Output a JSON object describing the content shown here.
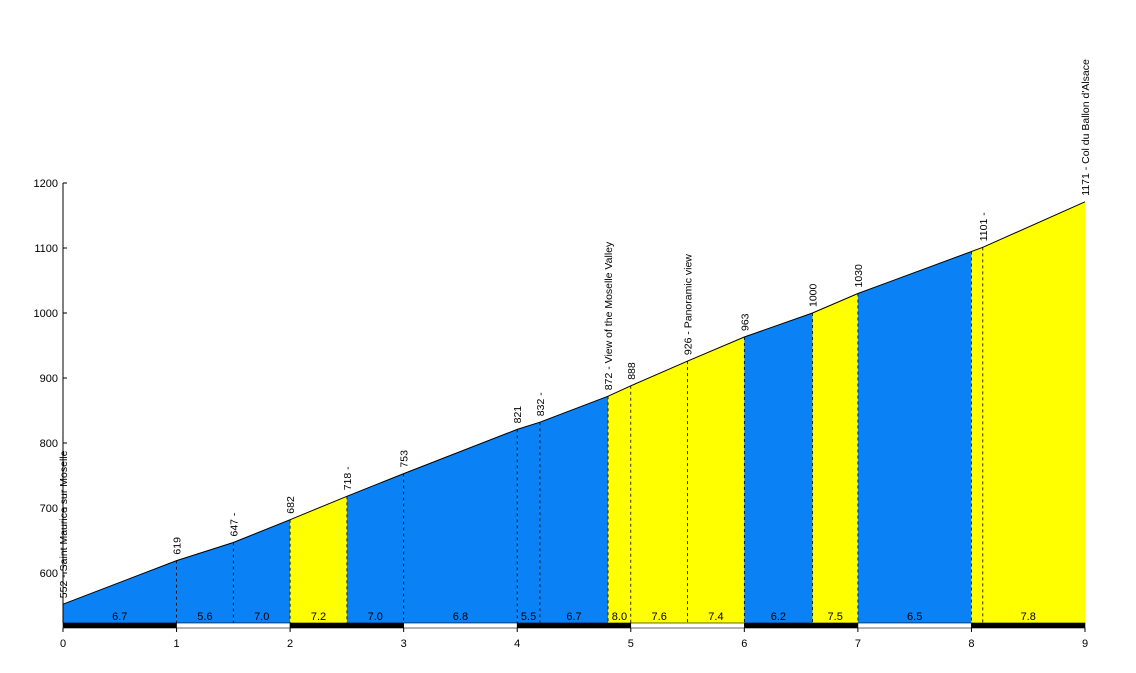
{
  "chart_data": {
    "type": "area",
    "title": "",
    "xlabel": "",
    "ylabel": "",
    "xlim": [
      0,
      9
    ],
    "ylim": [
      520,
      1200
    ],
    "yticks": [
      600,
      700,
      800,
      900,
      1000,
      1100,
      1200
    ],
    "xticks": [
      0,
      1,
      2,
      3,
      4,
      5,
      6,
      7,
      8,
      9
    ],
    "colors": {
      "blue": "#0a82f5",
      "yellow": "#ffff00",
      "line": "#000000"
    },
    "profile": [
      {
        "x": 0,
        "y": 552
      },
      {
        "x": 1,
        "y": 619
      },
      {
        "x": 1.5,
        "y": 647
      },
      {
        "x": 2,
        "y": 682
      },
      {
        "x": 2.5,
        "y": 718
      },
      {
        "x": 3,
        "y": 753
      },
      {
        "x": 4,
        "y": 821
      },
      {
        "x": 4.2,
        "y": 832
      },
      {
        "x": 4.8,
        "y": 872
      },
      {
        "x": 5,
        "y": 888
      },
      {
        "x": 5.5,
        "y": 926
      },
      {
        "x": 6,
        "y": 963
      },
      {
        "x": 6.6,
        "y": 1000
      },
      {
        "x": 7,
        "y": 1030
      },
      {
        "x": 8.1,
        "y": 1101
      },
      {
        "x": 9,
        "y": 1171
      }
    ],
    "segments": [
      {
        "from": 0,
        "to": 1,
        "gradient": "6.7",
        "color": "blue"
      },
      {
        "from": 1,
        "to": 1.5,
        "gradient": "5.6",
        "color": "blue"
      },
      {
        "from": 1.5,
        "to": 2,
        "gradient": "7.0",
        "color": "blue"
      },
      {
        "from": 2,
        "to": 2.5,
        "gradient": "7.2",
        "color": "yellow"
      },
      {
        "from": 2.5,
        "to": 3,
        "gradient": "7.0",
        "color": "blue"
      },
      {
        "from": 3,
        "to": 4,
        "gradient": "6.8",
        "color": "blue"
      },
      {
        "from": 4,
        "to": 4.2,
        "gradient": "5.5",
        "color": "blue"
      },
      {
        "from": 4.2,
        "to": 4.8,
        "gradient": "6.7",
        "color": "blue"
      },
      {
        "from": 4.8,
        "to": 5,
        "gradient": "8.0",
        "color": "yellow"
      },
      {
        "from": 5,
        "to": 5.5,
        "gradient": "7.6",
        "color": "yellow"
      },
      {
        "from": 5.5,
        "to": 6,
        "gradient": "7.4",
        "color": "yellow"
      },
      {
        "from": 6,
        "to": 6.6,
        "gradient": "6.2",
        "color": "blue"
      },
      {
        "from": 6.6,
        "to": 7,
        "gradient": "7.5",
        "color": "yellow"
      },
      {
        "from": 7,
        "to": 8,
        "gradient": "6.5",
        "color": "blue"
      },
      {
        "from": 8,
        "to": 9,
        "gradient": "7.8",
        "color": "yellow"
      }
    ],
    "annotations": [
      {
        "x": 0,
        "y": 552,
        "text": "552 - Saint Maurice sur Moselle"
      },
      {
        "x": 1,
        "y": 619,
        "text": "619"
      },
      {
        "x": 1.5,
        "y": 647,
        "text": "647 -"
      },
      {
        "x": 2,
        "y": 682,
        "text": "682"
      },
      {
        "x": 2.5,
        "y": 718,
        "text": "718 -"
      },
      {
        "x": 3,
        "y": 753,
        "text": "753"
      },
      {
        "x": 4,
        "y": 821,
        "text": "821"
      },
      {
        "x": 4.2,
        "y": 832,
        "text": "832 -"
      },
      {
        "x": 4.8,
        "y": 872,
        "text": "872 -   View of the Moselle Valley"
      },
      {
        "x": 5,
        "y": 888,
        "text": "888"
      },
      {
        "x": 5.5,
        "y": 926,
        "text": "926 -  Panoramic view"
      },
      {
        "x": 6,
        "y": 963,
        "text": "963"
      },
      {
        "x": 6.6,
        "y": 1000,
        "text": "1000"
      },
      {
        "x": 7,
        "y": 1030,
        "text": "1030"
      },
      {
        "x": 8.1,
        "y": 1101,
        "text": "1101 -"
      },
      {
        "x": 9,
        "y": 1171,
        "text": "1171 - Col du Ballon d'Alsace"
      }
    ],
    "dashed_markers": [
      1,
      1.5,
      2,
      2.5,
      3,
      4,
      4.2,
      4.8,
      5,
      5.5,
      6,
      6.6,
      7,
      8,
      8.1
    ],
    "km_bar": [
      "black",
      "white",
      "black",
      "white",
      "black",
      "white",
      "black",
      "white",
      "black"
    ]
  }
}
